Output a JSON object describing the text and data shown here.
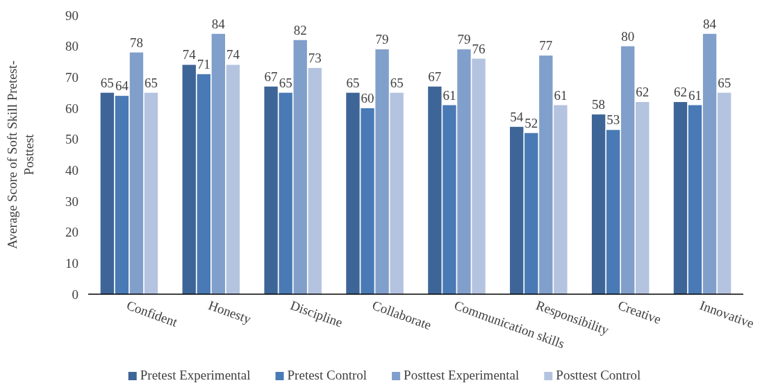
{
  "chart_data": {
    "type": "bar",
    "ylabel": "Average Score of Soft Skill Pretest-Posttest",
    "categories": [
      "Confident",
      "Honesty",
      "Discipline",
      "Collaborate",
      "Communication skills",
      "Responsibility",
      "Creative",
      "Innovative"
    ],
    "series": [
      {
        "name": "Pretest Experimental",
        "color": "#3e6597",
        "values": [
          65,
          74,
          67,
          65,
          67,
          54,
          58,
          62
        ]
      },
      {
        "name": "Pretest Control",
        "color": "#4a7ab5",
        "values": [
          64,
          71,
          65,
          60,
          61,
          52,
          53,
          61
        ]
      },
      {
        "name": "Posttest Experimental",
        "color": "#819fcb",
        "values": [
          78,
          84,
          82,
          79,
          79,
          77,
          80,
          84
        ]
      },
      {
        "name": "Posttest Control",
        "color": "#b4c3df",
        "values": [
          65,
          74,
          73,
          65,
          76,
          61,
          62,
          65
        ]
      }
    ],
    "ylim": [
      0,
      90
    ],
    "yticks": [
      0,
      10,
      20,
      30,
      40,
      50,
      60,
      70,
      80,
      90
    ],
    "grid": false,
    "legend": "bottom",
    "data_labels": true
  }
}
